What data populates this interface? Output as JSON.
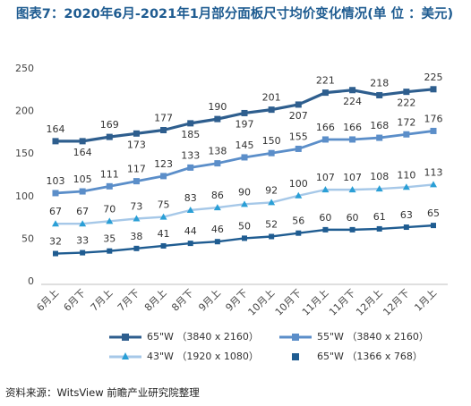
{
  "page_title": "图表7：2020年6月-2021年1月部分面板尺寸均价变化情况(单 位 ：美元)",
  "source": "资料来源：WitsView 前瞻产业研究院整理",
  "chart_data": {
    "type": "line",
    "title": "",
    "xlabel": "",
    "ylabel": "",
    "ylim": [
      0,
      250
    ],
    "yticks": [
      0,
      50,
      100,
      150,
      200,
      250
    ],
    "grid": false,
    "legend_position": "bottom",
    "categories": [
      "6月上",
      "6月下",
      "7月上",
      "7月下",
      "8月上",
      "8月下",
      "9月上",
      "9月下",
      "10月上",
      "10月下",
      "11月上",
      "11月下",
      "12月上",
      "12月下",
      "1月上"
    ],
    "series": [
      {
        "name": "65\"W （3840 x 2160）",
        "color": "#2e5e8e",
        "marker": "square",
        "values": [
          164,
          164,
          169,
          173,
          177,
          185,
          190,
          197,
          201,
          207,
          221,
          224,
          218,
          222,
          225
        ]
      },
      {
        "name": "55\"W （3840 x 2160）",
        "color": "#5b8ec9",
        "marker": "square",
        "values": [
          103,
          105,
          111,
          117,
          123,
          133,
          138,
          145,
          150,
          155,
          166,
          166,
          168,
          172,
          176
        ]
      },
      {
        "name": "43\"W （1920 x 1080）",
        "color": "#a6c8e8",
        "marker": "triangle",
        "values": [
          67,
          67,
          70,
          73,
          75,
          83,
          86,
          90,
          92,
          100,
          107,
          107,
          108,
          110,
          113
        ]
      },
      {
        "name": "65\"W （1366 x 768）",
        "color": "#1f5c91",
        "marker": "square",
        "values": [
          32,
          33,
          35,
          38,
          41,
          44,
          46,
          50,
          52,
          56,
          60,
          60,
          61,
          63,
          65
        ]
      }
    ]
  }
}
